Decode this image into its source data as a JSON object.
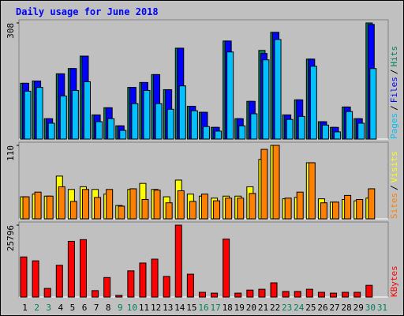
{
  "chart_data": [
    {
      "type": "bar",
      "title": "Daily usage for June 2018",
      "legend_separator": "/",
      "ylim": [
        0,
        308
      ],
      "yticks": [
        308
      ],
      "series": [
        {
          "name": "Hits",
          "color": "#00805c",
          "values": [
            148,
            154,
            54,
            173,
            187,
            220,
            64,
            83,
            35,
            137,
            150,
            171,
            131,
            241,
            87,
            71,
            31,
            260,
            54,
            100,
            235,
            283,
            64,
            104,
            212,
            46,
            31,
            85,
            54,
            308,
            null
          ]
        },
        {
          "name": "Files",
          "color": "#0000ff",
          "values": [
            148,
            154,
            54,
            173,
            187,
            220,
            64,
            83,
            35,
            137,
            150,
            171,
            131,
            241,
            87,
            71,
            31,
            260,
            54,
            100,
            227,
            283,
            64,
            104,
            212,
            46,
            31,
            85,
            54,
            304,
            null
          ]
        },
        {
          "name": "Pages",
          "color": "#00c0ff",
          "values": [
            127,
            137,
            42,
            114,
            129,
            152,
            46,
            54,
            23,
            94,
            129,
            94,
            79,
            141,
            75,
            33,
            21,
            231,
            35,
            67,
            210,
            264,
            52,
            60,
            193,
            37,
            19,
            73,
            42,
            187,
            null
          ]
        }
      ]
    },
    {
      "type": "bar",
      "ylim": [
        0,
        110
      ],
      "yticks": [
        110
      ],
      "series": [
        {
          "name": "Visits",
          "color": "#ffff00",
          "values": [
            33,
            37,
            34,
            64,
            44,
            48,
            44,
            37,
            20,
            44,
            53,
            44,
            33,
            58,
            37,
            34,
            31,
            34,
            34,
            48,
            89,
            110,
            30,
            32,
            84,
            30,
            25,
            29,
            27,
            31,
            null
          ]
        },
        {
          "name": "Sites",
          "color": "#ff8000",
          "values": [
            33,
            40,
            34,
            48,
            26,
            44,
            32,
            44,
            19,
            45,
            29,
            43,
            24,
            42,
            26,
            37,
            27,
            31,
            31,
            38,
            104,
            110,
            31,
            40,
            84,
            24,
            25,
            35,
            29,
            45,
            null
          ]
        }
      ]
    },
    {
      "type": "bar",
      "ylim": [
        0,
        25796
      ],
      "yticks": [
        25796
      ],
      "categories": [
        "1",
        "2",
        "3",
        "4",
        "5",
        "6",
        "7",
        "8",
        "9",
        "10",
        "11",
        "12",
        "13",
        "14",
        "15",
        "16",
        "17",
        "18",
        "19",
        "20",
        "21",
        "22",
        "23",
        "24",
        "25",
        "26",
        "27",
        "28",
        "29",
        "30",
        "31"
      ],
      "category_colors": [
        "#000000",
        "#00805c",
        "#00805c",
        "#000000",
        "#000000",
        "#000000",
        "#000000",
        "#000000",
        "#00805c",
        "#00805c",
        "#000000",
        "#000000",
        "#000000",
        "#000000",
        "#000000",
        "#00805c",
        "#00805c",
        "#000000",
        "#000000",
        "#000000",
        "#000000",
        "#000000",
        "#00805c",
        "#00805c",
        "#000000",
        "#000000",
        "#000000",
        "#000000",
        "#000000",
        "#00805c",
        "#00805c"
      ],
      "series": [
        {
          "name": "KBytes",
          "color": "#ff0000",
          "values": [
            14400,
            13000,
            3100,
            11400,
            20000,
            20600,
            2300,
            7000,
            600,
            9400,
            12200,
            13600,
            7400,
            25796,
            8200,
            1700,
            1400,
            20800,
            1400,
            2500,
            2800,
            5100,
            2000,
            2000,
            2800,
            1700,
            1400,
            1700,
            1700,
            4200,
            null
          ]
        }
      ]
    }
  ]
}
